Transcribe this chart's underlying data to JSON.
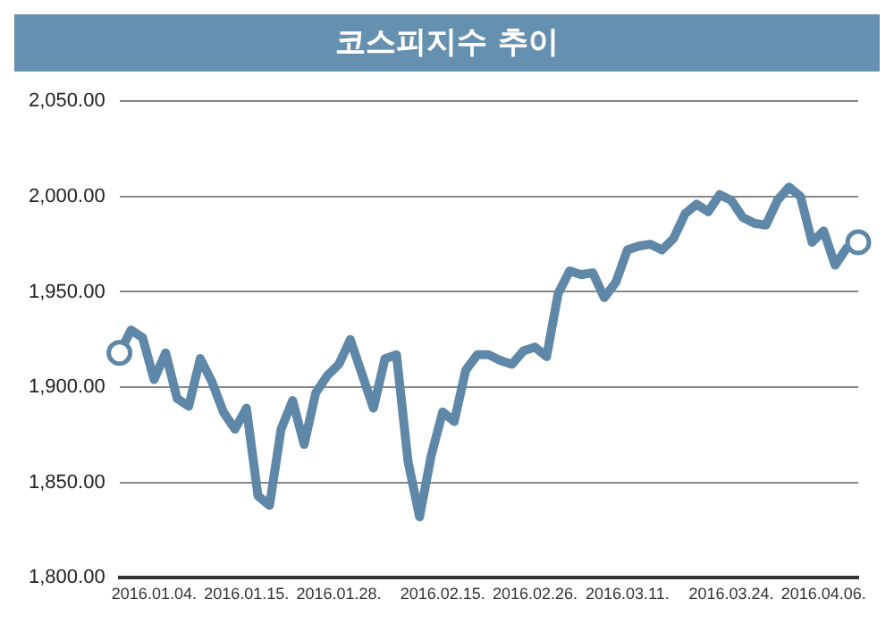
{
  "chart_data": {
    "type": "line",
    "title": "코스피지수 추이",
    "categories": [
      null,
      null,
      null,
      "2016.01.04.",
      null,
      null,
      null,
      null,
      null,
      null,
      null,
      "2016.01.15.",
      null,
      null,
      null,
      null,
      null,
      null,
      null,
      "2016.01.28.",
      null,
      null,
      null,
      null,
      null,
      null,
      null,
      null,
      "2016.02.15.",
      null,
      null,
      null,
      null,
      null,
      null,
      null,
      "2016.02.26.",
      null,
      null,
      null,
      null,
      null,
      null,
      null,
      "2016.03.11.",
      null,
      null,
      null,
      null,
      null,
      null,
      null,
      null,
      "2016.03.24.",
      null,
      null,
      null,
      null,
      null,
      null,
      null,
      "2016.04.06.",
      null,
      null,
      null
    ],
    "series": [
      {
        "color": "#5f88a8",
        "values": [
          1918,
          1930,
          1926,
          1904,
          1918,
          1894,
          1890,
          1915,
          1903,
          1887,
          1878,
          1889,
          1843,
          1838,
          1878,
          1893,
          1870,
          1897,
          1906,
          1912,
          1925,
          1907,
          1889,
          1915,
          1917,
          1861,
          1832,
          1864,
          1887,
          1882,
          1909,
          1917,
          1917,
          1914,
          1912,
          1919,
          1921,
          1916,
          1949,
          1961,
          1959,
          1960,
          1947,
          1955,
          1972,
          1974,
          1975,
          1972,
          1978,
          1991,
          1996,
          1992,
          2001,
          1998,
          1989,
          1986,
          1985,
          1998,
          2005,
          2000,
          1976,
          1982,
          1964,
          1973,
          1976
        ]
      }
    ],
    "ylim": [
      1800,
      2050
    ],
    "yticks": [
      {
        "value": 1800,
        "label": "1,800.00"
      },
      {
        "value": 1850,
        "label": "1,850.00"
      },
      {
        "value": 1900,
        "label": "1,900.00"
      },
      {
        "value": 1950,
        "label": "1,950.00"
      },
      {
        "value": 2000,
        "label": "2,000.00"
      },
      {
        "value": 2050,
        "label": "2,050.00"
      }
    ],
    "grid": "y",
    "line_style": "solid"
  }
}
